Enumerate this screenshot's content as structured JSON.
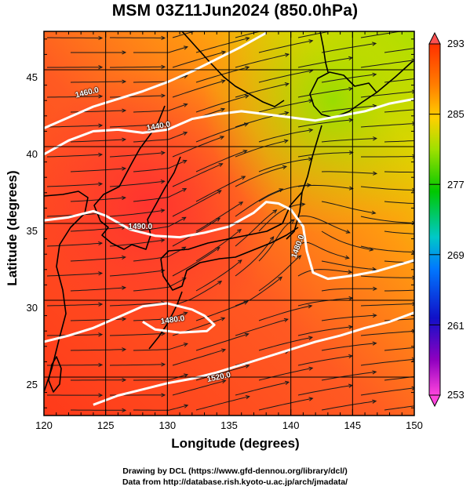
{
  "title": "MSM 03Z11Jun2024 (850.0hPa)",
  "axes": {
    "xlabel": "Longitude (degrees)",
    "ylabel": "Latitude  (degrees)",
    "xticks": [
      "120",
      "125",
      "130",
      "135",
      "140",
      "145",
      "150"
    ],
    "yticks": [
      "25",
      "30",
      "35",
      "40",
      "45"
    ]
  },
  "colorbar": {
    "labels": [
      "293",
      "285",
      "277",
      "269",
      "261",
      "253"
    ],
    "colors": [
      "#ff44dd",
      "#9000c0",
      "#1010c8",
      "#0078ff",
      "#00c8c8",
      "#00c800",
      "#a0e000",
      "#ffd000",
      "#ff8000",
      "#ff3000",
      "#ff5050"
    ]
  },
  "contour_labels": [
    "1460.0",
    "1440.0",
    "1490.0",
    "1480.0",
    "1480.0",
    "1520.0"
  ],
  "footer": {
    "line1": "Drawing by DCL (https://www.gfd-dennou.org/library/dcl/)",
    "line2": "Data from http://database.rish.kyoto-u.ac.jp/arch/jmadata/"
  },
  "map_data": {
    "extent": {
      "lon": [
        120,
        150
      ],
      "lat": [
        22.5,
        47.5
      ]
    },
    "field": "temperature (K) with geopotential height contours (m) and wind streamlines",
    "contours": [
      {
        "label": "1460.0",
        "points": [
          [
            120,
            41.2
          ],
          [
            122,
            41.9
          ],
          [
            124,
            42.6
          ],
          [
            126,
            43.1
          ],
          [
            128,
            43.6
          ],
          [
            130,
            44.2
          ],
          [
            132,
            44.9
          ],
          [
            134,
            45.7
          ],
          [
            136,
            46.5
          ],
          [
            138,
            47.4
          ]
        ]
      },
      {
        "label": "1440.0",
        "points": [
          [
            120,
            39.5
          ],
          [
            122,
            40.4
          ],
          [
            124,
            41.0
          ],
          [
            126,
            41.1
          ],
          [
            128,
            40.9
          ],
          [
            130,
            41.1
          ],
          [
            132,
            41.8
          ],
          [
            134,
            42.1
          ],
          [
            136,
            42.3
          ],
          [
            138,
            42.1
          ],
          [
            140,
            41.9
          ],
          [
            142,
            41.7
          ],
          [
            144,
            42.0
          ],
          [
            146,
            42.3
          ],
          [
            148,
            42.8
          ],
          [
            150,
            43.1
          ]
        ]
      },
      {
        "label": "1480.0",
        "points": [
          [
            120,
            35.2
          ],
          [
            122,
            35.4
          ],
          [
            124,
            35.8
          ],
          [
            125,
            35.5
          ],
          [
            127,
            34.6
          ],
          [
            129,
            34.2
          ],
          [
            131,
            34.1
          ],
          [
            133,
            34.4
          ],
          [
            135,
            34.8
          ],
          [
            137,
            35.7
          ],
          [
            138,
            36.4
          ],
          [
            139,
            36.3
          ],
          [
            140,
            35.9
          ],
          [
            141,
            34.8
          ],
          [
            141.3,
            33.2
          ],
          [
            141.8,
            31.8
          ],
          [
            143,
            31.4
          ],
          [
            145,
            31.6
          ],
          [
            147,
            31.9
          ],
          [
            150,
            32.6
          ]
        ]
      },
      {
        "label": "1480.0",
        "points": [
          [
            120,
            27.3
          ],
          [
            122,
            27.7
          ],
          [
            124,
            28.2
          ],
          [
            126,
            28.9
          ],
          [
            128,
            29.6
          ],
          [
            130,
            29.8
          ],
          [
            132,
            29.4
          ],
          [
            133,
            29.0
          ],
          [
            133.8,
            28.4
          ],
          [
            133.2,
            28.0
          ],
          [
            131,
            27.9
          ],
          [
            129,
            28.1
          ],
          [
            128,
            28.6
          ]
        ]
      },
      {
        "label": "1520.0",
        "points": [
          [
            124,
            23.2
          ],
          [
            126,
            23.8
          ],
          [
            128,
            24.2
          ],
          [
            130,
            24.6
          ],
          [
            132,
            24.9
          ],
          [
            134,
            25.3
          ],
          [
            136,
            25.8
          ],
          [
            138,
            26.3
          ],
          [
            140,
            26.8
          ],
          [
            142,
            27.3
          ],
          [
            144,
            27.7
          ],
          [
            146,
            28.2
          ],
          [
            148,
            28.6
          ],
          [
            150,
            29.2
          ]
        ]
      }
    ]
  }
}
